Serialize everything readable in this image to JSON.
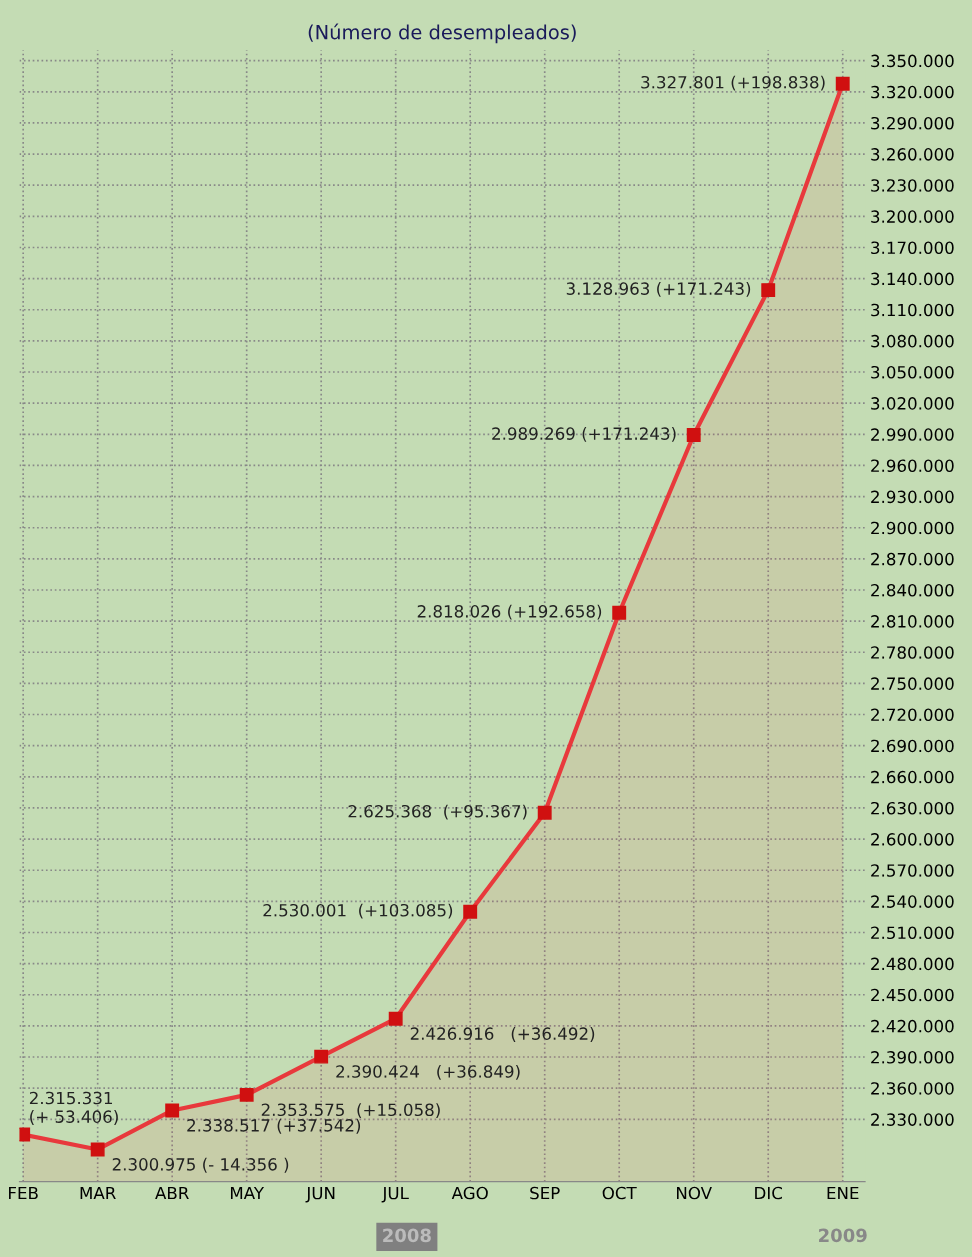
{
  "chart_data": {
    "type": "area",
    "title": "(Número de desempleados)",
    "categories": [
      "FEB",
      "MAR",
      "ABR",
      "MAY",
      "JUN",
      "JUL",
      "AGO",
      "SEP",
      "OCT",
      "NOV",
      "DIC",
      "ENE"
    ],
    "series": [
      {
        "color": "#e8393c",
        "values": [
          2315331,
          2300975,
          2338517,
          2353575,
          2390424,
          2426916,
          2530001,
          2625368,
          2818026,
          2989269,
          3128963,
          3327801
        ],
        "value_labels": [
          "2.315.331\n(+ 53.406)",
          "2.300.975 (- 14.356 )",
          "2.338.517 (+37.542)",
          "2.353.575  (+15.058)",
          "2.390.424   (+36.849)",
          "2.426.916   (+36.492)",
          "2.530.001  (+103.085)",
          "2.625.368  (+95.367)",
          "2.818.026 (+192.658)",
          "2.989.269 (+171.243)",
          "3.128.963 (+171.243)",
          "3.327.801 (+198.838)"
        ]
      }
    ],
    "ylim": [
      2270000,
      3360000
    ],
    "yticks": [
      {
        "value": 2330000,
        "label": "2.330.000"
      },
      {
        "value": 2360000,
        "label": "2.360.000"
      },
      {
        "value": 2390000,
        "label": "2.390.000"
      },
      {
        "value": 2420000,
        "label": "2.420.000"
      },
      {
        "value": 2450000,
        "label": "2.450.000"
      },
      {
        "value": 2480000,
        "label": "2.480.000"
      },
      {
        "value": 2510000,
        "label": "2.510.000"
      },
      {
        "value": 2540000,
        "label": "2.540.000"
      },
      {
        "value": 2570000,
        "label": "2.570.000"
      },
      {
        "value": 2600000,
        "label": "2.600.000"
      },
      {
        "value": 2630000,
        "label": "2.630.000"
      },
      {
        "value": 2660000,
        "label": "2.660.000"
      },
      {
        "value": 2690000,
        "label": "2.690.000"
      },
      {
        "value": 2720000,
        "label": "2.720.000"
      },
      {
        "value": 2750000,
        "label": "2.750.000"
      },
      {
        "value": 2780000,
        "label": "2.780.000"
      },
      {
        "value": 2810000,
        "label": "2.810.000"
      },
      {
        "value": 2840000,
        "label": "2.840.000"
      },
      {
        "value": 2870000,
        "label": "2.870.000"
      },
      {
        "value": 2900000,
        "label": "2.900.000"
      },
      {
        "value": 2930000,
        "label": "2.930.000"
      },
      {
        "value": 2960000,
        "label": "2.960.000"
      },
      {
        "value": 2990000,
        "label": "2.990.000"
      },
      {
        "value": 3020000,
        "label": "3.020.000"
      },
      {
        "value": 3050000,
        "label": "3.050.000"
      },
      {
        "value": 3080000,
        "label": "3.080.000"
      },
      {
        "value": 3110000,
        "label": "3.110.000"
      },
      {
        "value": 3140000,
        "label": "3.140.000"
      },
      {
        "value": 3170000,
        "label": "3.170.000"
      },
      {
        "value": 3200000,
        "label": "3.200.000"
      },
      {
        "value": 3230000,
        "label": "3.230.000"
      },
      {
        "value": 3260000,
        "label": "3.260.000"
      },
      {
        "value": 3290000,
        "label": "3.290.000"
      },
      {
        "value": 3320000,
        "label": "3.320.000"
      },
      {
        "value": 3350000,
        "label": "3.350.000"
      }
    ],
    "grid": true,
    "marker": "square",
    "line_style": "solid",
    "annotations": [
      "2008",
      "2009"
    ]
  }
}
